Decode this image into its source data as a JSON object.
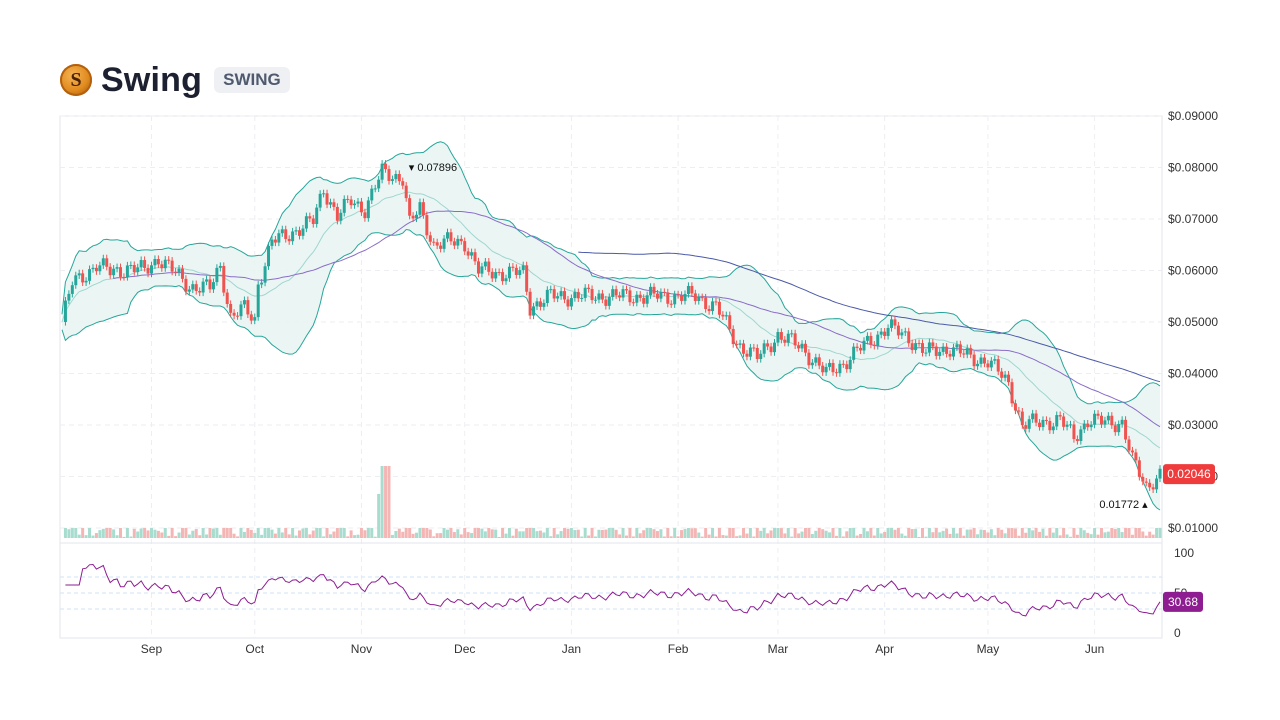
{
  "header": {
    "coin_icon": "swing-coin-icon",
    "coin_letter": "S",
    "name": "Swing",
    "symbol": "SWING"
  },
  "chart_data": {
    "type": "candlestick",
    "indicators": [
      "bollinger-bands",
      "moving-average",
      "volume",
      "rsi"
    ],
    "price_axis": {
      "min": 0.01,
      "max": 0.09,
      "ticks": [
        "$0.01000",
        "$0.02000",
        "$0.03000",
        "$0.04000",
        "$0.05000",
        "$0.06000",
        "$0.07000",
        "$0.08000",
        "$0.09000"
      ],
      "tick_values": [
        0.01,
        0.02,
        0.03,
        0.04,
        0.05,
        0.06,
        0.07,
        0.08,
        0.09
      ]
    },
    "rsi_axis": {
      "min": 0,
      "max": 100,
      "ticks": [
        "100",
        "50",
        "0"
      ],
      "tick_values": [
        100,
        50,
        0
      ]
    },
    "x_axis": {
      "start": "2023-08-06",
      "end": "2024-06-20",
      "ticks": [
        "Sep",
        "Oct",
        "Nov",
        "Dec",
        "Jan",
        "Feb",
        "Mar",
        "Apr",
        "May",
        "Jun"
      ],
      "tick_dates": [
        "2023-09-01",
        "2023-10-01",
        "2023-11-01",
        "2023-12-01",
        "2024-01-01",
        "2024-02-01",
        "2024-03-01",
        "2024-04-01",
        "2024-05-01",
        "2024-06-01"
      ]
    },
    "close_series": [
      [
        "2023-08-06",
        0.05
      ],
      [
        "2023-08-09",
        0.0575
      ],
      [
        "2023-08-12",
        0.059
      ],
      [
        "2023-08-16",
        0.061
      ],
      [
        "2023-08-20",
        0.0598
      ],
      [
        "2023-08-25",
        0.0605
      ],
      [
        "2023-08-30",
        0.06
      ],
      [
        "2023-09-03",
        0.0625
      ],
      [
        "2023-09-07",
        0.06
      ],
      [
        "2023-09-12",
        0.057
      ],
      [
        "2023-09-18",
        0.0565
      ],
      [
        "2023-09-21",
        0.061
      ],
      [
        "2023-09-24",
        0.051
      ],
      [
        "2023-09-28",
        0.0525
      ],
      [
        "2023-10-01",
        0.0505
      ],
      [
        "2023-10-02",
        0.0575
      ],
      [
        "2023-10-06",
        0.0655
      ],
      [
        "2023-10-12",
        0.0675
      ],
      [
        "2023-10-18",
        0.0695
      ],
      [
        "2023-10-21",
        0.076
      ],
      [
        "2023-10-25",
        0.0705
      ],
      [
        "2023-10-29",
        0.0735
      ],
      [
        "2023-11-02",
        0.072
      ],
      [
        "2023-11-07",
        0.079
      ],
      [
        "2023-11-13",
        0.078
      ],
      [
        "2023-11-15",
        0.069
      ],
      [
        "2023-11-18",
        0.072
      ],
      [
        "2023-11-22",
        0.065
      ],
      [
        "2023-11-26",
        0.0655
      ],
      [
        "2023-12-01",
        0.0655
      ],
      [
        "2023-12-05",
        0.06
      ],
      [
        "2023-12-12",
        0.0595
      ],
      [
        "2023-12-18",
        0.0595
      ],
      [
        "2023-12-20",
        0.053
      ],
      [
        "2023-12-26",
        0.055
      ],
      [
        "2024-01-05",
        0.055
      ],
      [
        "2024-01-20",
        0.055
      ],
      [
        "2024-02-06",
        0.055
      ],
      [
        "2024-02-12",
        0.053
      ],
      [
        "2024-02-18",
        0.046
      ],
      [
        "2024-02-24",
        0.043
      ],
      [
        "2024-03-01",
        0.0475
      ],
      [
        "2024-03-08",
        0.045
      ],
      [
        "2024-03-15",
        0.04
      ],
      [
        "2024-03-20",
        0.042
      ],
      [
        "2024-03-27",
        0.046
      ],
      [
        "2024-04-02",
        0.049
      ],
      [
        "2024-04-08",
        0.047
      ],
      [
        "2024-04-13",
        0.044
      ],
      [
        "2024-04-20",
        0.045
      ],
      [
        "2024-04-26",
        0.043
      ],
      [
        "2024-05-01",
        0.0425
      ],
      [
        "2024-05-07",
        0.038
      ],
      [
        "2024-05-11",
        0.03
      ],
      [
        "2024-05-16",
        0.0305
      ],
      [
        "2024-05-22",
        0.031
      ],
      [
        "2024-05-26",
        0.0275
      ],
      [
        "2024-05-30",
        0.031
      ],
      [
        "2024-06-03",
        0.0305
      ],
      [
        "2024-06-09",
        0.0305
      ],
      [
        "2024-06-12",
        0.023
      ],
      [
        "2024-06-16",
        0.018
      ],
      [
        "2024-06-20",
        0.02046
      ]
    ],
    "annotations": [
      {
        "label": "0.07896",
        "kind": "high",
        "date": "2023-11-13",
        "value": 0.07896
      },
      {
        "label": "0.01772",
        "kind": "low",
        "date": "2024-06-17",
        "value": 0.01772
      }
    ],
    "last_price_label": "0.02046",
    "last_rsi_label": "30.68",
    "colors": {
      "up": "#26a69a",
      "down": "#ef5350",
      "band": "#26a69a",
      "band_fill": "#e7f4f2",
      "ma_long": "#4b5aa8",
      "ma_mid": "#8a6cc8",
      "rsi": "#8e1d92",
      "price_badge": "#ef3b3b",
      "rsi_badge": "#8e1d92"
    }
  }
}
